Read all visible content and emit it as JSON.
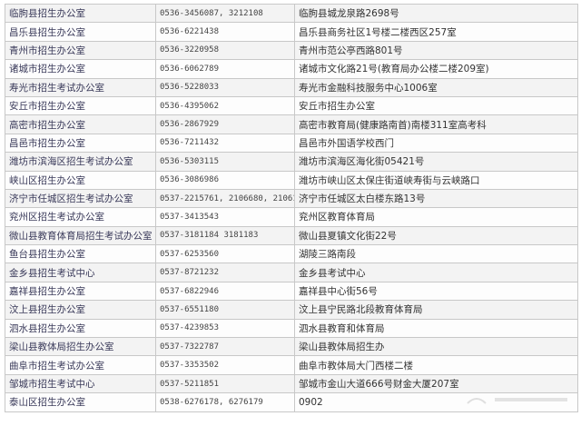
{
  "table": {
    "rows": [
      {
        "office": "临朐县招生办公室",
        "phone": "0536-3456087, 3212108",
        "address": "临朐县城龙泉路2698号"
      },
      {
        "office": "昌乐县招生办公室",
        "phone": "0536-6221438",
        "address": "昌乐县商务社区1号楼二楼西区257室"
      },
      {
        "office": "青州市招生办公室",
        "phone": "0536-3220958",
        "address": "青州市范公亭西路801号"
      },
      {
        "office": "诸城市招生办公室",
        "phone": "0536-6062789",
        "address": "诸城市文化路21号(教育局办公楼二楼209室)"
      },
      {
        "office": "寿光市招生考试办公室",
        "phone": "0536-5228033",
        "address": "寿光市金融科技服务中心1006室"
      },
      {
        "office": "安丘市招生办公室",
        "phone": "0536-4395062",
        "address": "安丘市招生办公室"
      },
      {
        "office": "高密市招生办公室",
        "phone": "0536-2867929",
        "address": "高密市教育局(健康路南首)南楼311室高考科"
      },
      {
        "office": "昌邑市招生办公室",
        "phone": "0536-7211432",
        "address": "昌邑市外国语学校西门"
      },
      {
        "office": "潍坊市滨海区招生考试办公室",
        "phone": "0536-5303115",
        "address": "潍坊市滨海区海化街05421号"
      },
      {
        "office": "峡山区招生办公室",
        "phone": "0536-3086986",
        "address": "潍坊市峡山区太保庄街道峡寿街与云峡路口"
      },
      {
        "office": "济宁市任城区招生考试办公室",
        "phone": "0537-2215761, 2106680, 2106191",
        "address": "济宁市任城区太白楼东路13号"
      },
      {
        "office": "兖州区招生考试办公室",
        "phone": "0537-3413543",
        "address": "兖州区教育体育局"
      },
      {
        "office": "微山县教育体育局招生考试办公室",
        "phone": "0537-3181184 3181183",
        "address": "微山县夏镇文化街22号"
      },
      {
        "office": "鱼台县招生办公室",
        "phone": "0537-6253560",
        "address": "湖陵三路南段"
      },
      {
        "office": "金乡县招生考试中心",
        "phone": "0537-8721232",
        "address": "金乡县考试中心"
      },
      {
        "office": "嘉祥县招生办公室",
        "phone": "0537-6822946",
        "address": "嘉祥县中心街56号"
      },
      {
        "office": "汶上县招生办公室",
        "phone": "0537-6551180",
        "address": "汶上县宁民路北段教育体育局"
      },
      {
        "office": "泗水县招生办公室",
        "phone": "0537-4239853",
        "address": "泗水县教育和体育局"
      },
      {
        "office": "梁山县教体局招生办公室",
        "phone": "0537-7322787",
        "address": "梁山县教体局招生办"
      },
      {
        "office": "曲阜市招生考试办公室",
        "phone": "0537-3353502",
        "address": "曲阜市教体局大门西楼二楼"
      },
      {
        "office": "邹城市招生考试中心",
        "phone": "0537-5211851",
        "address": "邹城市金山大道666号财金大厦207室"
      },
      {
        "office": "泰山区招生办公室",
        "phone": "0538-6276178, 6276179",
        "address": "0902"
      }
    ]
  }
}
